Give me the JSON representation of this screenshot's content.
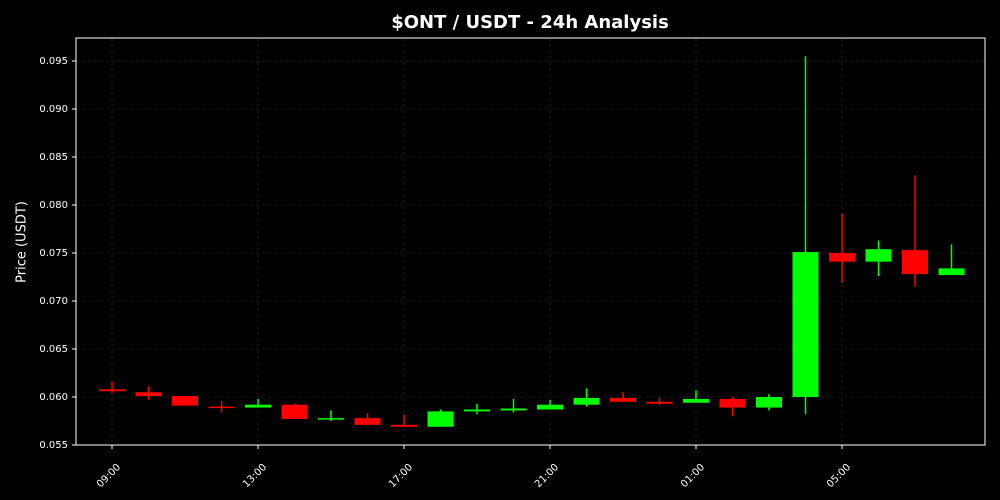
{
  "chart_data": {
    "type": "candlestick",
    "title": "$ONT / USDT - 24h Analysis",
    "y_label": "Price (USDT)",
    "categories": [
      "09:00",
      null,
      null,
      null,
      "13:00",
      null,
      null,
      null,
      "17:00",
      null,
      null,
      null,
      "21:00",
      null,
      null,
      null,
      "01:00",
      null,
      null,
      null,
      "05:00",
      null,
      null,
      null
    ],
    "open": [
      0.0608,
      0.0605,
      0.0601,
      0.059,
      0.0589,
      0.0592,
      0.0577,
      0.0578,
      0.0571,
      0.0569,
      0.0585,
      0.0586,
      0.0587,
      0.0592,
      0.0599,
      0.0595,
      0.0594,
      0.0598,
      0.0589,
      0.06,
      0.075,
      0.0741,
      0.0753,
      0.0727
    ],
    "high": [
      0.0616,
      0.0611,
      0.0601,
      0.0596,
      0.0598,
      0.0593,
      0.0586,
      0.0583,
      0.0582,
      0.0587,
      0.0593,
      0.0598,
      0.0597,
      0.0609,
      0.0605,
      0.0599,
      0.0607,
      0.06,
      0.0603,
      0.0955,
      0.0791,
      0.0763,
      0.0831,
      0.0759
    ],
    "low": [
      0.0604,
      0.0597,
      0.0591,
      0.0584,
      0.0589,
      0.0577,
      0.0575,
      0.0571,
      0.0569,
      0.0569,
      0.0582,
      0.0584,
      0.0587,
      0.059,
      0.0595,
      0.0592,
      0.0594,
      0.058,
      0.0586,
      0.0582,
      0.0719,
      0.0726,
      0.0715,
      0.0727
    ],
    "close": [
      0.0606,
      0.0601,
      0.0591,
      0.0589,
      0.0592,
      0.0577,
      0.0578,
      0.0571,
      0.0569,
      0.0585,
      0.0587,
      0.0588,
      0.0592,
      0.0599,
      0.0595,
      0.0593,
      0.0598,
      0.0589,
      0.06,
      0.0751,
      0.0741,
      0.0754,
      0.0728,
      0.0734
    ],
    "up_color": "#00ff00",
    "down_color": "#ff0000",
    "ylim": [
      0.055,
      0.0974
    ],
    "yticks": [
      0.055,
      {
        "value": 0.06,
        "label": "0.060"
      },
      0.065,
      {
        "value": 0.07,
        "label": "0.070"
      },
      0.075,
      {
        "value": 0.08,
        "label": "0.080"
      },
      0.085,
      {
        "value": 0.09,
        "label": "0.090"
      },
      0.095
    ],
    "grid": true
  }
}
